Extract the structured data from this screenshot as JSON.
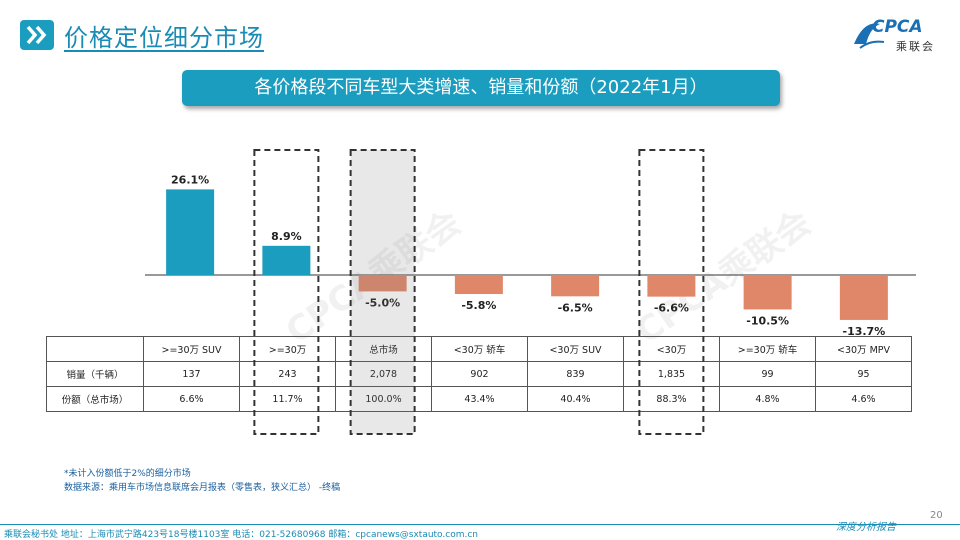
{
  "header": {
    "title": "价格定位细分市场",
    "logo_text": "CPCA",
    "logo_sub": "乘联会",
    "subtitle": "各价格段不同车型大类增速、销量和份额（2022年1月）"
  },
  "watermark": "CPCA乘联会",
  "colors": {
    "positive": "#1b9dbf",
    "negative": "#e0876a",
    "highlight": "#7f7f7f"
  },
  "chart_data": {
    "type": "bar",
    "categories": [
      ">=30万 SUV",
      ">=30万",
      "总市场",
      "<30万 轿车",
      "<30万 SUV",
      "<30万",
      ">=30万 轿车",
      "<30万 MPV"
    ],
    "values": [
      26.1,
      8.9,
      -5.0,
      -5.8,
      -6.5,
      -6.6,
      -10.5,
      -13.7
    ],
    "data_labels": [
      "26.1%",
      "8.9%",
      "-5.0%",
      "-5.8%",
      "-6.5%",
      "-6.6%",
      "-10.5%",
      "-13.7%"
    ],
    "unit": "%",
    "highlighted": [
      ">=30万",
      "总市场",
      "<30万"
    ]
  },
  "table": {
    "rows": [
      {
        "label": "销量（千辆）",
        "values": [
          "137",
          "243",
          "2,078",
          "902",
          "839",
          "1,835",
          "99",
          "95"
        ]
      },
      {
        "label": "份额（总市场）",
        "values": [
          "6.6%",
          "11.7%",
          "100.0%",
          "43.4%",
          "40.4%",
          "88.3%",
          "4.8%",
          "4.6%"
        ]
      }
    ]
  },
  "notes": {
    "note1": "*未计入份额低于2%的细分市场",
    "note2": "数据来源：乘用车市场信息联席会月报表（零售表，狭义汇总） -终稿"
  },
  "footer": {
    "text": "乘联会秘书处  地址：上海市武宁路423号18号楼1103室  电话：021-52680968  邮箱：cpcanews@sxtauto.com.cn",
    "script": "深度分析报告",
    "page": "20"
  }
}
